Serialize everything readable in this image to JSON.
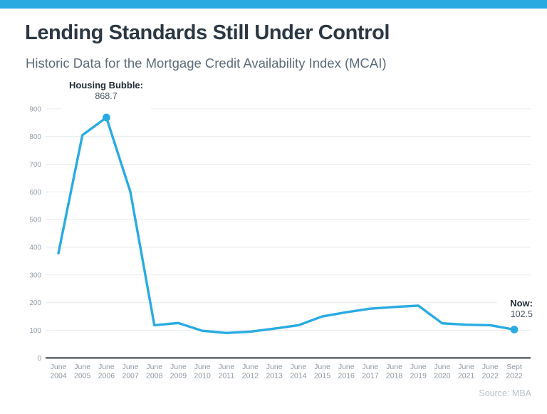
{
  "page": {
    "accent_color": "#29abe2",
    "title": "Lending Standards Still Under Control",
    "subtitle": "Historic Data for the Mortgage Credit Availability Index (MCAI)",
    "source": "Source: MBA"
  },
  "chart_data": {
    "type": "line",
    "title": "Historic Data for the Mortgage Credit Availability Index (MCAI)",
    "xlabel": "",
    "ylabel": "",
    "categories": [
      "June 2004",
      "June 2005",
      "June 2006",
      "June 2007",
      "June 2008",
      "June 2009",
      "June 2010",
      "June 2011",
      "June 2012",
      "June 2013",
      "June 2014",
      "June 2015",
      "June 2016",
      "June 2017",
      "June 2018",
      "June 2019",
      "June 2020",
      "June 2021",
      "June 2022",
      "Sept 2022"
    ],
    "values": [
      378,
      805,
      868.7,
      600,
      118,
      126,
      98,
      90,
      95,
      106,
      118,
      150,
      165,
      178,
      184,
      189,
      125,
      120,
      118,
      102.5
    ],
    "ylim": [
      0,
      900
    ],
    "yticks": [
      0,
      100,
      200,
      300,
      400,
      500,
      600,
      700,
      800,
      900
    ],
    "grid": true,
    "legend": false,
    "line_color": "#29abe2",
    "marker_color": "#29abe2",
    "marker_indexes": [
      2,
      19
    ],
    "annotations": [
      {
        "label": "Housing Bubble:",
        "value": "868.7",
        "index": 2
      },
      {
        "label": "Now:",
        "value": "102.5",
        "index": 19
      }
    ]
  }
}
